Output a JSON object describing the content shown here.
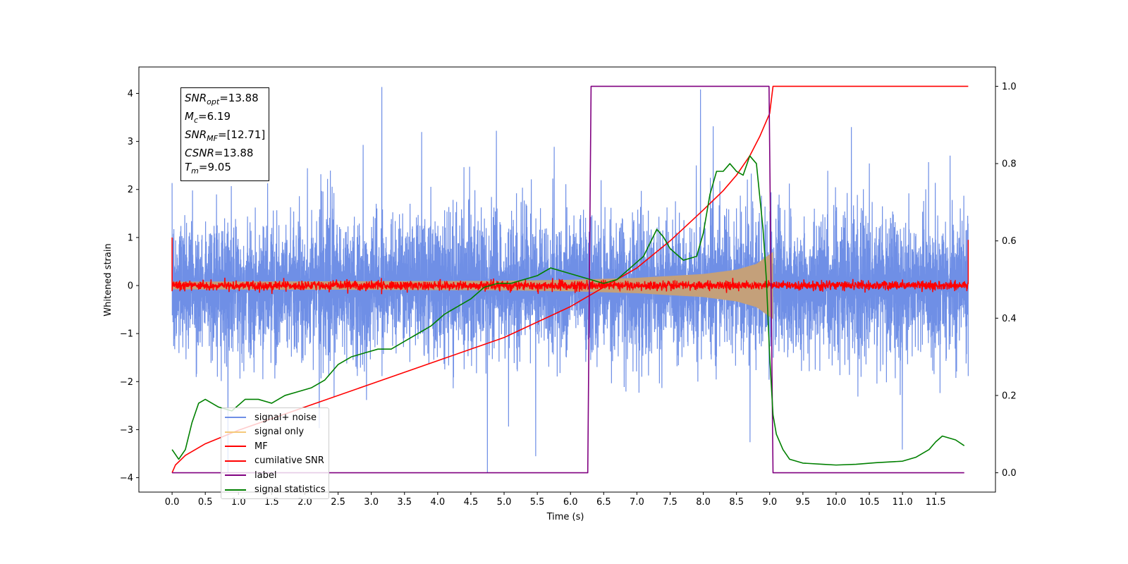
{
  "chart_data": {
    "type": "line",
    "xlabel": "Time (s)",
    "ylabel_left": "Whitened strain",
    "xlim": [
      -0.5,
      12.4
    ],
    "ylim_left": [
      -4.3,
      4.55
    ],
    "ylim_right": [
      -0.05,
      1.05
    ],
    "x_ticks": [
      0.0,
      0.5,
      1.0,
      1.5,
      2.0,
      2.5,
      3.0,
      3.5,
      4.0,
      4.5,
      5.0,
      5.5,
      6.0,
      6.5,
      7.0,
      7.5,
      8.0,
      8.5,
      9.0,
      9.5,
      10.0,
      10.5,
      11.0,
      11.5
    ],
    "x_tick_labels": [
      "0.0",
      "0.5",
      "1.0",
      "1.5",
      "2.0",
      "2.5",
      "3.0",
      "3.5",
      "4.0",
      "4.5",
      "5.0",
      "5.5",
      "6.0",
      "6.5",
      "7.0",
      "7.5",
      "8.0",
      "8.5",
      "9.0",
      "9.5",
      "10.0",
      "10.5",
      "11.0",
      "11.5"
    ],
    "y_left_ticks": [
      -4,
      -3,
      -2,
      -1,
      0,
      1,
      2,
      3,
      4
    ],
    "y_left_tick_labels": [
      "−4",
      "−3",
      "−2",
      "−1",
      "0",
      "1",
      "2",
      "3",
      "4"
    ],
    "y_right_ticks": [
      0.0,
      0.2,
      0.4,
      0.6,
      0.8,
      1.0
    ],
    "y_right_tick_labels": [
      "0.0",
      "0.2",
      "0.4",
      "0.6",
      "0.8",
      "1.0"
    ],
    "grid": false,
    "legend_placement": "lower-left",
    "series": [
      {
        "name": "signal+ noise",
        "axis": "left",
        "color": "#6f8fe6",
        "x_range": [
          0.0,
          11.99
        ],
        "envelope_typical": [
          -2.0,
          2.0
        ],
        "envelope_peaks": [
          -3.9,
          4.2
        ]
      },
      {
        "name": "signal only",
        "axis": "left",
        "color": "#f5c97a",
        "fill_color": "#c4a07a",
        "x_range": [
          0.0,
          9.05
        ],
        "amplitude_x": [
          0.0,
          3.0,
          5.0,
          6.0,
          7.0,
          8.0,
          8.5,
          8.8,
          9.0,
          9.05
        ],
        "amplitude_y": [
          0.08,
          0.09,
          0.1,
          0.12,
          0.16,
          0.24,
          0.33,
          0.45,
          0.65,
          0.7
        ]
      },
      {
        "name": "MF",
        "axis": "left",
        "color": "#ff0000",
        "x_range": [
          0.0,
          11.99
        ],
        "amplitude": 0.12,
        "edge_spikes": [
          [
            0.0,
            1.0
          ],
          [
            11.99,
            0.95
          ]
        ]
      },
      {
        "name": "cumilative SNR",
        "axis": "right",
        "color": "#ff0000",
        "x": [
          0.0,
          0.05,
          0.2,
          0.5,
          1.0,
          2.0,
          3.0,
          4.0,
          5.0,
          6.0,
          6.5,
          7.0,
          7.5,
          8.0,
          8.3,
          8.5,
          8.7,
          8.85,
          9.0,
          9.05,
          11.99
        ],
        "y": [
          0.0,
          0.02,
          0.045,
          0.075,
          0.11,
          0.17,
          0.23,
          0.29,
          0.35,
          0.43,
          0.48,
          0.53,
          0.6,
          0.68,
          0.73,
          0.77,
          0.82,
          0.87,
          0.93,
          1.0,
          1.0
        ]
      },
      {
        "name": "label",
        "axis": "right",
        "color": "#800080",
        "x": [
          0.0,
          6.26,
          6.31,
          8.99,
          9.05,
          11.93
        ],
        "y": [
          0.0,
          0.0,
          1.0,
          1.0,
          0.0,
          0.0
        ]
      },
      {
        "name": "signal statistics",
        "axis": "right",
        "color": "#008000",
        "x": [
          0.0,
          0.1,
          0.2,
          0.3,
          0.4,
          0.5,
          0.7,
          0.9,
          1.1,
          1.3,
          1.5,
          1.7,
          1.9,
          2.1,
          2.3,
          2.5,
          2.7,
          2.9,
          3.1,
          3.3,
          3.5,
          3.7,
          3.9,
          4.1,
          4.3,
          4.5,
          4.7,
          4.9,
          5.1,
          5.3,
          5.5,
          5.7,
          5.9,
          6.1,
          6.3,
          6.5,
          6.7,
          6.9,
          7.1,
          7.3,
          7.4,
          7.5,
          7.7,
          7.9,
          8.0,
          8.1,
          8.2,
          8.3,
          8.4,
          8.5,
          8.6,
          8.7,
          8.8,
          8.9,
          8.95,
          9.0,
          9.05,
          9.1,
          9.2,
          9.3,
          9.5,
          9.8,
          10.0,
          10.3,
          10.6,
          11.0,
          11.2,
          11.4,
          11.5,
          11.6,
          11.8,
          11.93
        ],
        "y": [
          0.06,
          0.035,
          0.06,
          0.13,
          0.18,
          0.19,
          0.17,
          0.16,
          0.19,
          0.19,
          0.18,
          0.2,
          0.21,
          0.22,
          0.24,
          0.28,
          0.3,
          0.31,
          0.32,
          0.32,
          0.34,
          0.36,
          0.38,
          0.41,
          0.43,
          0.45,
          0.48,
          0.49,
          0.49,
          0.5,
          0.51,
          0.53,
          0.52,
          0.51,
          0.5,
          0.49,
          0.5,
          0.53,
          0.56,
          0.63,
          0.61,
          0.58,
          0.55,
          0.56,
          0.62,
          0.72,
          0.78,
          0.78,
          0.8,
          0.78,
          0.77,
          0.82,
          0.8,
          0.63,
          0.5,
          0.3,
          0.15,
          0.1,
          0.06,
          0.035,
          0.025,
          0.022,
          0.02,
          0.022,
          0.026,
          0.03,
          0.04,
          0.06,
          0.08,
          0.095,
          0.085,
          0.07
        ]
      }
    ],
    "annotations": [
      {
        "name": "SNR",
        "sub": "opt",
        "value": "=13.88"
      },
      {
        "name": "M",
        "sub": "c",
        "value": "=6.19"
      },
      {
        "name": "SNR",
        "sub": "MF",
        "value": "=[12.71]"
      },
      {
        "name": "CSNR",
        "sub": "",
        "value": "=13.88"
      },
      {
        "name": "T",
        "sub": "m",
        "value": "=9.05"
      }
    ]
  }
}
